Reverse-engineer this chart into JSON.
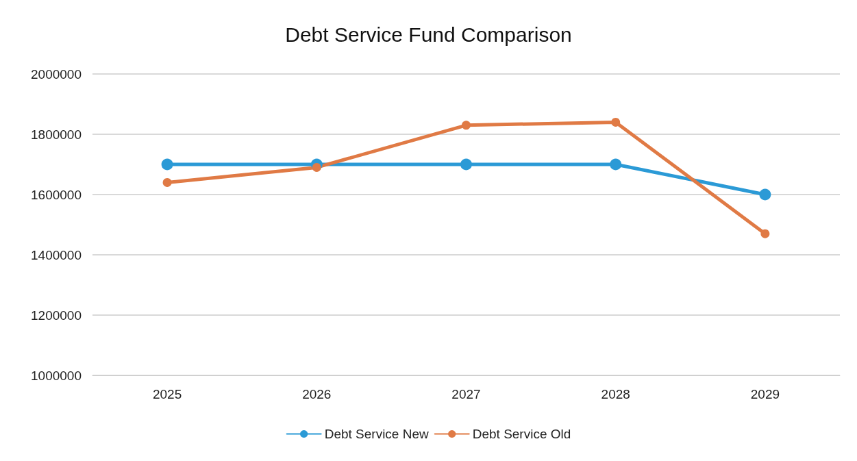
{
  "chart_data": {
    "type": "line",
    "title": "Debt Service Fund Comparison",
    "categories": [
      "2025",
      "2026",
      "2027",
      "2028",
      "2029"
    ],
    "series": [
      {
        "name": "Debt Service New",
        "color": "#2b9ad6",
        "values": [
          1700000,
          1700000,
          1700000,
          1700000,
          1600000
        ]
      },
      {
        "name": "Debt Service Old",
        "color": "#e07a45",
        "values": [
          1640000,
          1690000,
          1830000,
          1840000,
          1470000
        ]
      }
    ],
    "ylim": [
      1000000,
      2000000
    ],
    "yticks": [
      1000000,
      1200000,
      1400000,
      1600000,
      1800000,
      2000000
    ],
    "grid": "y",
    "legend": "bottom",
    "marker": "circle",
    "line_style": "solid"
  }
}
